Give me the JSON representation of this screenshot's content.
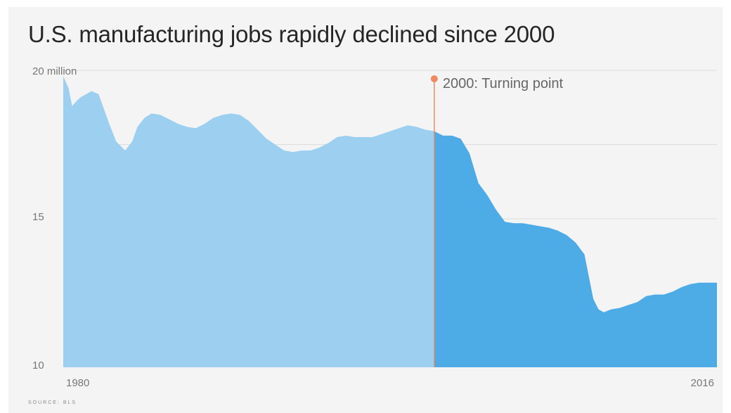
{
  "chart_data": {
    "type": "area",
    "title": "U.S. manufacturing jobs rapidly declined since 2000",
    "y_unit_label": "20 million",
    "y_ticks": [
      "10",
      "15",
      "20 million"
    ],
    "y_tick_values": [
      10,
      15,
      20
    ],
    "ylim": [
      10,
      20
    ],
    "x_tick_labels": [
      "1980",
      "2016"
    ],
    "xlim": [
      1979,
      2016
    ],
    "grid": true,
    "annotation": {
      "x": 2000,
      "label": "2000: Turning point"
    },
    "colors": {
      "before": "#9ccff0",
      "after": "#4dabe6",
      "marker": "#f08a5d"
    },
    "series": [
      {
        "x": [
          1979.0,
          1979.3,
          1979.5,
          1979.8,
          1980.0,
          1980.3,
          1980.6,
          1981.0,
          1981.3,
          1981.6,
          1982.0,
          1982.5,
          1982.9,
          1983.2,
          1983.6,
          1984.0,
          1984.5,
          1985.0,
          1985.5,
          1986.0,
          1986.5,
          1987.0,
          1987.5,
          1988.0,
          1988.5,
          1989.0,
          1989.5,
          1990.0,
          1990.5,
          1991.0,
          1991.5,
          1992.0,
          1992.5,
          1993.0,
          1993.5,
          1994.0,
          1994.5,
          1995.0,
          1995.5,
          1996.0,
          1996.5,
          1997.0,
          1997.5,
          1998.0,
          1998.5,
          1999.0,
          1999.5,
          2000.0,
          2000.5,
          2001.0,
          2001.5,
          2002.0,
          2002.5,
          2003.0,
          2003.5,
          2004.0,
          2004.5,
          2005.0,
          2005.5,
          2006.0,
          2006.5,
          2007.0,
          2007.5,
          2008.0,
          2008.5,
          2009.0,
          2009.3,
          2009.6,
          2010.0,
          2010.5,
          2011.0,
          2011.5,
          2012.0,
          2012.5,
          2013.0,
          2013.5,
          2014.0,
          2014.5,
          2015.0,
          2015.5,
          2016.0
        ],
        "values": [
          19.8,
          19.4,
          18.8,
          19.0,
          19.1,
          19.2,
          19.3,
          19.2,
          18.7,
          18.2,
          17.6,
          17.3,
          17.6,
          18.1,
          18.4,
          18.55,
          18.5,
          18.35,
          18.2,
          18.1,
          18.05,
          18.2,
          18.4,
          18.5,
          18.55,
          18.5,
          18.3,
          18.0,
          17.7,
          17.5,
          17.3,
          17.25,
          17.3,
          17.3,
          17.4,
          17.55,
          17.75,
          17.8,
          17.75,
          17.75,
          17.75,
          17.85,
          17.95,
          18.05,
          18.15,
          18.1,
          18.0,
          17.95,
          17.8,
          17.8,
          17.7,
          17.2,
          16.2,
          15.8,
          15.3,
          14.9,
          14.85,
          14.85,
          14.8,
          14.75,
          14.7,
          14.6,
          14.45,
          14.2,
          13.8,
          12.3,
          11.95,
          11.85,
          11.95,
          12.0,
          12.1,
          12.2,
          12.4,
          12.45,
          12.45,
          12.55,
          12.7,
          12.8,
          12.85,
          12.85,
          12.85
        ]
      }
    ]
  },
  "source": "SOURCE: BLS"
}
